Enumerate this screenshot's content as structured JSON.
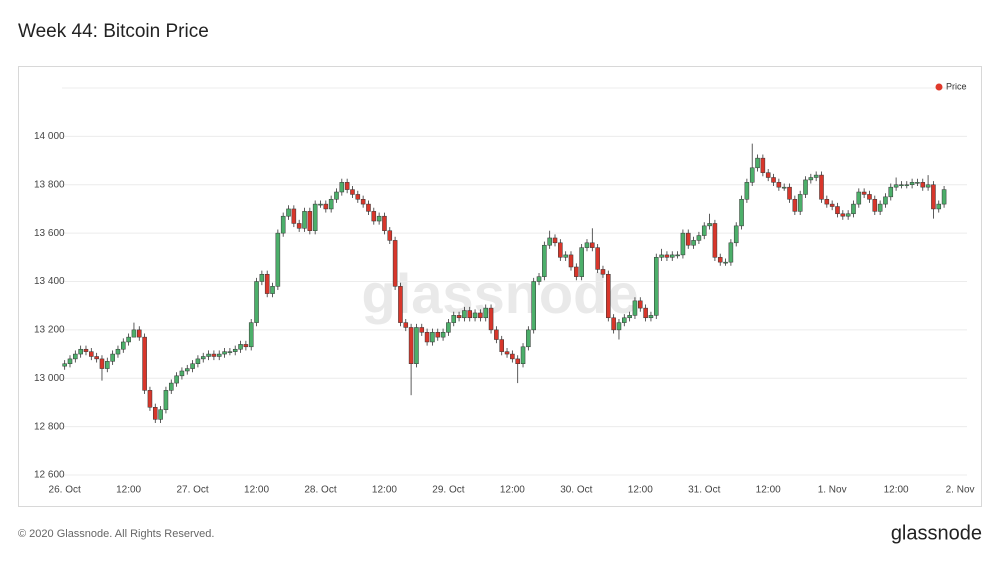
{
  "chart_data": {
    "type": "candlestick",
    "title": "Week 44: Bitcoin Price",
    "watermark": "glassnode",
    "footer": "© 2020 Glassnode. All Rights Reserved.",
    "brand": "glassnode",
    "legend_position": "top-right",
    "grid": true,
    "up_color": "#4caf6a",
    "down_color": "#d8362b",
    "ylim": [
      12600,
      14200
    ],
    "yticks": [
      {
        "value": 12600,
        "label": "12 600"
      },
      {
        "value": 12800,
        "label": "12 800"
      },
      {
        "value": 13000,
        "label": "13 000"
      },
      {
        "value": 13200,
        "label": "13 200"
      },
      {
        "value": 13400,
        "label": "13 400"
      },
      {
        "value": 13600,
        "label": "13 600"
      },
      {
        "value": 13800,
        "label": "13 800"
      },
      {
        "value": 14000,
        "label": "14 000"
      }
    ],
    "xlim": [
      -0.5,
      169.3
    ],
    "xticks": [
      {
        "value": 0,
        "label": "26. Oct"
      },
      {
        "value": 12,
        "label": "12:00"
      },
      {
        "value": 24,
        "label": "27. Oct"
      },
      {
        "value": 36,
        "label": "12:00"
      },
      {
        "value": 48,
        "label": "28. Oct"
      },
      {
        "value": 60,
        "label": "12:00"
      },
      {
        "value": 72,
        "label": "29. Oct"
      },
      {
        "value": 84,
        "label": "12:00"
      },
      {
        "value": 96,
        "label": "30. Oct"
      },
      {
        "value": 108,
        "label": "12:00"
      },
      {
        "value": 120,
        "label": "31. Oct"
      },
      {
        "value": 132,
        "label": "12:00"
      },
      {
        "value": 144,
        "label": "1. Nov"
      },
      {
        "value": 156,
        "label": "12:00"
      },
      {
        "value": 168,
        "label": "2. Nov"
      }
    ],
    "series": [
      {
        "name": "Price",
        "color": "#e0392b",
        "open": [
          13050,
          13060,
          13080,
          13100,
          13120,
          13110,
          13090,
          13080,
          13040,
          13070,
          13100,
          13120,
          13150,
          13170,
          13200,
          13170,
          12950,
          12880,
          12830,
          12870,
          12950,
          12980,
          13010,
          13030,
          13040,
          13060,
          13080,
          13090,
          13100,
          13090,
          13100,
          13110,
          13110,
          13120,
          13140,
          13130,
          13230,
          13400,
          13430,
          13350,
          13380,
          13600,
          13670,
          13700,
          13640,
          13620,
          13690,
          13610,
          13720,
          13720,
          13700,
          13740,
          13770,
          13810,
          13780,
          13760,
          13740,
          13720,
          13690,
          13650,
          13670,
          13610,
          13570,
          13380,
          13230,
          13210,
          13060,
          13210,
          13190,
          13150,
          13190,
          13170,
          13190,
          13230,
          13260,
          13250,
          13280,
          13250,
          13270,
          13250,
          13290,
          13200,
          13160,
          13110,
          13100,
          13080,
          13060,
          13130,
          13200,
          13400,
          13420,
          13550,
          13580,
          13560,
          13500,
          13510,
          13460,
          13420,
          13540,
          13560,
          13540,
          13450,
          13430,
          13250,
          13200,
          13230,
          13250,
          13260,
          13320,
          13290,
          13250,
          13260,
          13500,
          13510,
          13500,
          13510,
          13510,
          13600,
          13550,
          13570,
          13590,
          13630,
          13640,
          13500,
          13480,
          13480,
          13560,
          13630,
          13740,
          13810,
          13870,
          13910,
          13850,
          13830,
          13810,
          13790,
          13790,
          13740,
          13690,
          13760,
          13820,
          13830,
          13840,
          13740,
          13720,
          13710,
          13680,
          13670,
          13680,
          13720,
          13770,
          13760,
          13740,
          13690,
          13720,
          13750,
          13790,
          13800,
          13800,
          13800,
          13810,
          13810,
          13790,
          13800,
          13700,
          13720
        ],
        "high": [
          13075,
          13095,
          13115,
          13135,
          13135,
          13125,
          13105,
          13095,
          13085,
          13115,
          13135,
          13165,
          13185,
          13230,
          13215,
          13185,
          12965,
          12895,
          12885,
          12965,
          12995,
          13025,
          13045,
          13055,
          13075,
          13095,
          13105,
          13115,
          13115,
          13115,
          13125,
          13125,
          13135,
          13155,
          13155,
          13245,
          13415,
          13445,
          13445,
          13395,
          13615,
          13685,
          13715,
          13715,
          13655,
          13705,
          13705,
          13735,
          13735,
          13735,
          13755,
          13785,
          13825,
          13825,
          13795,
          13775,
          13755,
          13735,
          13705,
          13685,
          13685,
          13625,
          13585,
          13395,
          13245,
          13225,
          13225,
          13225,
          13205,
          13205,
          13205,
          13205,
          13245,
          13275,
          13275,
          13295,
          13295,
          13285,
          13285,
          13305,
          13305,
          13215,
          13175,
          13125,
          13115,
          13095,
          13145,
          13215,
          13415,
          13435,
          13565,
          13610,
          13595,
          13575,
          13525,
          13525,
          13475,
          13555,
          13575,
          13620,
          13555,
          13465,
          13445,
          13265,
          13245,
          13265,
          13275,
          13335,
          13335,
          13305,
          13275,
          13515,
          13535,
          13525,
          13525,
          13525,
          13615,
          13615,
          13585,
          13605,
          13645,
          13680,
          13655,
          13515,
          13495,
          13575,
          13645,
          13755,
          13825,
          13970,
          13925,
          13925,
          13865,
          13845,
          13825,
          13805,
          13805,
          13755,
          13775,
          13835,
          13845,
          13855,
          13855,
          13755,
          13735,
          13725,
          13695,
          13695,
          13735,
          13785,
          13785,
          13775,
          13755,
          13735,
          13765,
          13805,
          13830,
          13815,
          13815,
          13825,
          13825,
          13825,
          13840,
          13815,
          13735,
          13795
        ],
        "low": [
          13035,
          13045,
          13065,
          13085,
          13095,
          13075,
          13065,
          12990,
          13025,
          13055,
          13085,
          13105,
          13135,
          13185,
          13155,
          12935,
          12865,
          12815,
          12815,
          12855,
          12935,
          12965,
          12995,
          13015,
          13025,
          13045,
          13065,
          13075,
          13075,
          13075,
          13085,
          13095,
          13095,
          13105,
          13115,
          13115,
          13215,
          13385,
          13335,
          13335,
          13365,
          13585,
          13655,
          13625,
          13605,
          13605,
          13595,
          13595,
          13705,
          13685,
          13685,
          13725,
          13755,
          13765,
          13745,
          13725,
          13705,
          13675,
          13635,
          13635,
          13595,
          13555,
          13365,
          13215,
          13195,
          12930,
          13045,
          13175,
          13135,
          13135,
          13155,
          13155,
          13175,
          13215,
          13235,
          13235,
          13235,
          13235,
          13235,
          13235,
          13185,
          13145,
          13095,
          13085,
          13065,
          12980,
          13045,
          13115,
          13185,
          13385,
          13405,
          13535,
          13545,
          13485,
          13485,
          13445,
          13405,
          13405,
          13525,
          13525,
          13435,
          13415,
          13235,
          13185,
          13160,
          13215,
          13235,
          13245,
          13275,
          13235,
          13235,
          13245,
          13485,
          13485,
          13485,
          13495,
          13495,
          13535,
          13535,
          13555,
          13575,
          13615,
          13485,
          13465,
          13465,
          13465,
          13545,
          13615,
          13725,
          13795,
          13855,
          13835,
          13815,
          13795,
          13775,
          13775,
          13725,
          13675,
          13675,
          13745,
          13805,
          13815,
          13725,
          13705,
          13695,
          13665,
          13655,
          13655,
          13665,
          13705,
          13745,
          13725,
          13675,
          13675,
          13705,
          13735,
          13775,
          13785,
          13785,
          13785,
          13795,
          13775,
          13775,
          13660,
          13685,
          13705
        ],
        "close": [
          13060,
          13080,
          13100,
          13120,
          13110,
          13090,
          13080,
          13040,
          13070,
          13100,
          13120,
          13150,
          13170,
          13200,
          13170,
          12950,
          12880,
          12830,
          12870,
          12950,
          12980,
          13010,
          13030,
          13040,
          13060,
          13080,
          13090,
          13100,
          13090,
          13100,
          13110,
          13110,
          13120,
          13140,
          13130,
          13230,
          13400,
          13430,
          13350,
          13380,
          13600,
          13670,
          13700,
          13640,
          13620,
          13690,
          13610,
          13720,
          13720,
          13700,
          13740,
          13770,
          13810,
          13780,
          13760,
          13740,
          13720,
          13690,
          13650,
          13670,
          13610,
          13570,
          13380,
          13230,
          13210,
          13060,
          13210,
          13190,
          13150,
          13190,
          13170,
          13190,
          13230,
          13260,
          13250,
          13280,
          13250,
          13270,
          13250,
          13290,
          13200,
          13160,
          13110,
          13100,
          13080,
          13060,
          13130,
          13200,
          13400,
          13420,
          13550,
          13580,
          13560,
          13500,
          13510,
          13460,
          13420,
          13540,
          13560,
          13540,
          13450,
          13430,
          13250,
          13200,
          13230,
          13250,
          13260,
          13320,
          13290,
          13250,
          13260,
          13500,
          13510,
          13500,
          13510,
          13510,
          13600,
          13550,
          13570,
          13590,
          13630,
          13640,
          13500,
          13480,
          13480,
          13560,
          13630,
          13740,
          13810,
          13870,
          13910,
          13850,
          13830,
          13810,
          13790,
          13790,
          13740,
          13690,
          13760,
          13820,
          13830,
          13840,
          13740,
          13720,
          13710,
          13680,
          13670,
          13680,
          13720,
          13770,
          13760,
          13740,
          13690,
          13720,
          13750,
          13790,
          13800,
          13800,
          13800,
          13810,
          13810,
          13790,
          13800,
          13700,
          13720,
          13780
        ]
      }
    ]
  }
}
